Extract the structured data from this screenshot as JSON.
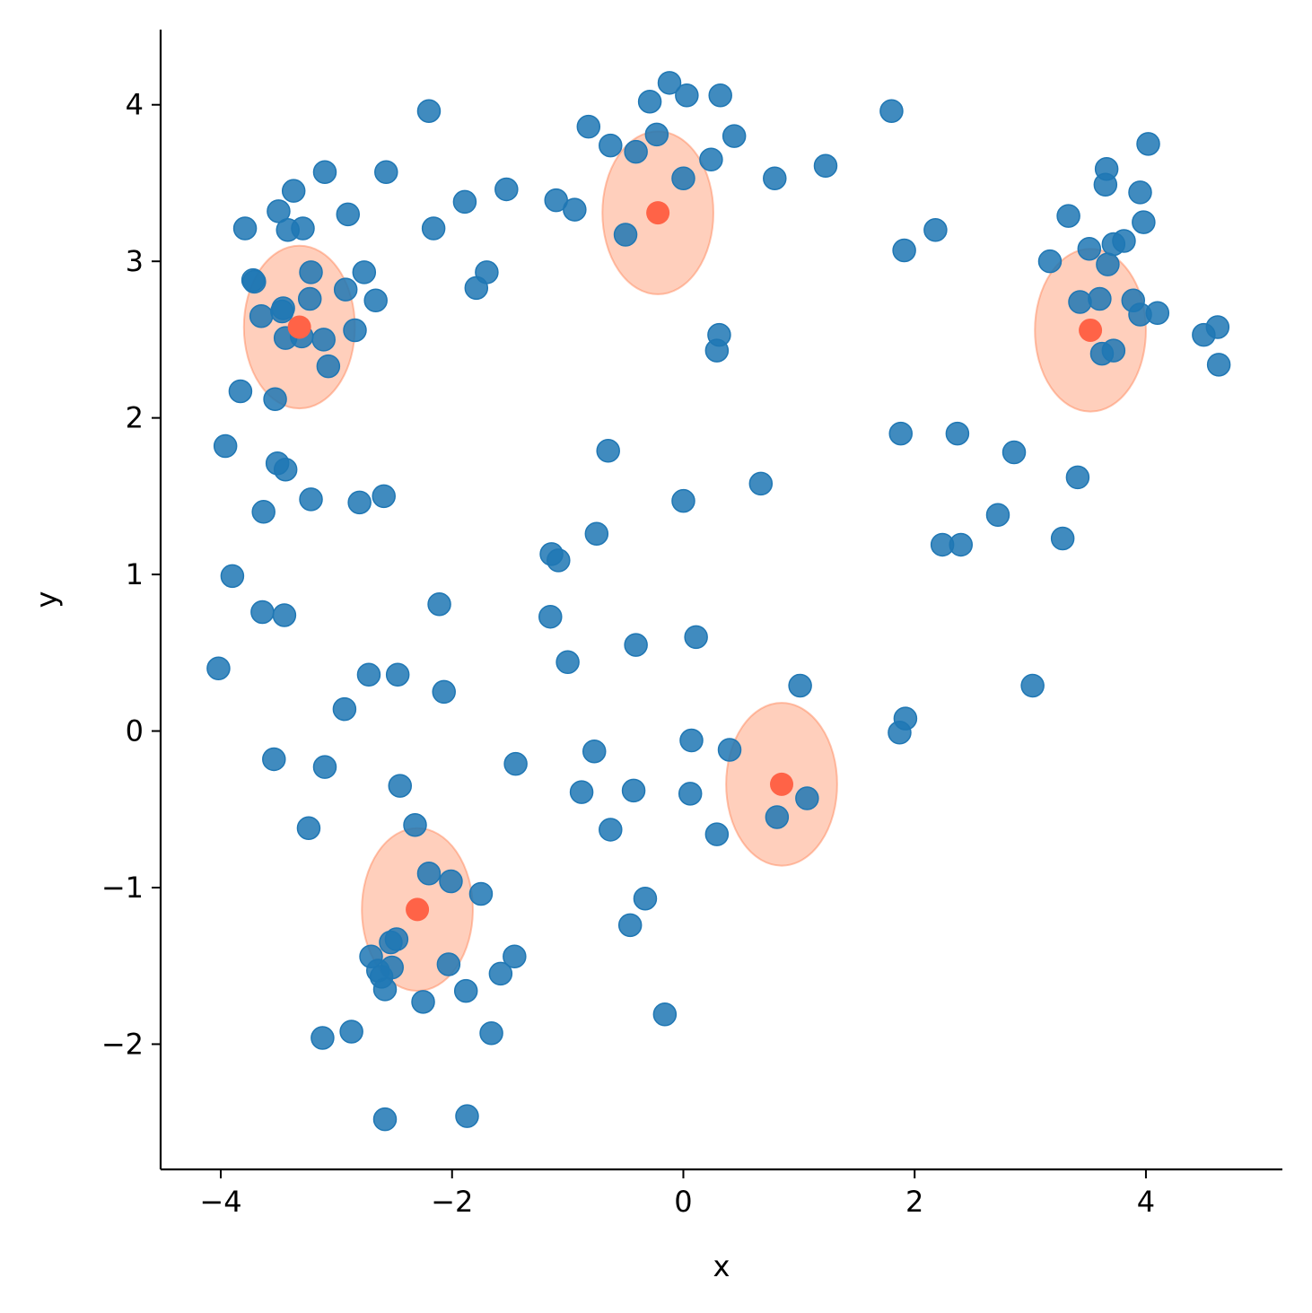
{
  "chart_data": {
    "type": "scatter",
    "title": "",
    "xlabel": "x",
    "ylabel": "y",
    "xlim": [
      -4.52,
      5.18
    ],
    "ylim": [
      -2.8,
      4.48
    ],
    "xticks": [
      -4,
      -2,
      0,
      2,
      4
    ],
    "yticks": [
      -2,
      -1,
      0,
      1,
      2,
      3,
      4
    ],
    "xtick_labels": [
      "−4",
      "−2",
      "0",
      "2",
      "4"
    ],
    "ytick_labels": [
      "−2",
      "−1",
      "0",
      "1",
      "2",
      "3",
      "4"
    ],
    "grid": false,
    "legend": "none",
    "colors": {
      "points": "#1f77b4",
      "centers": "#ff6347",
      "ellipses": "#ffa07a",
      "ellipse_edge": "#ff7f50"
    },
    "series": [
      {
        "kind": "points",
        "points": [
          [
            -3.79,
            3.21
          ],
          [
            -3.72,
            2.88
          ],
          [
            -3.71,
            2.87
          ],
          [
            -3.65,
            2.65
          ],
          [
            -3.5,
            3.32
          ],
          [
            -3.47,
            2.68
          ],
          [
            -3.46,
            2.7
          ],
          [
            -3.42,
            3.2
          ],
          [
            -3.37,
            3.45
          ],
          [
            -3.29,
            3.21
          ],
          [
            -3.22,
            2.93
          ],
          [
            -3.23,
            2.76
          ],
          [
            -3.3,
            2.52
          ],
          [
            -3.44,
            2.51
          ],
          [
            -3.11,
            2.5
          ],
          [
            -3.07,
            2.33
          ],
          [
            -3.1,
            3.57
          ],
          [
            -2.92,
            2.82
          ],
          [
            -2.9,
            3.3
          ],
          [
            -2.76,
            2.93
          ],
          [
            -2.84,
            2.56
          ],
          [
            -2.66,
            2.75
          ],
          [
            -2.57,
            3.57
          ],
          [
            -2.2,
            3.96
          ],
          [
            -2.16,
            3.21
          ],
          [
            -3.83,
            2.17
          ],
          [
            -3.53,
            2.12
          ],
          [
            -3.96,
            1.82
          ],
          [
            -3.51,
            1.71
          ],
          [
            -3.44,
            1.67
          ],
          [
            -3.22,
            1.48
          ],
          [
            -2.8,
            1.46
          ],
          [
            -2.59,
            1.5
          ],
          [
            -3.63,
            1.4
          ],
          [
            -3.9,
            0.99
          ],
          [
            -3.64,
            0.76
          ],
          [
            -3.45,
            0.74
          ],
          [
            -4.02,
            0.4
          ],
          [
            -1.89,
            3.38
          ],
          [
            -1.7,
            2.93
          ],
          [
            -1.79,
            2.83
          ],
          [
            -1.53,
            3.46
          ],
          [
            -1.1,
            3.39
          ],
          [
            -0.94,
            3.33
          ],
          [
            -0.82,
            3.86
          ],
          [
            -0.63,
            3.74
          ],
          [
            -0.41,
            3.7
          ],
          [
            -0.29,
            4.02
          ],
          [
            -0.23,
            3.81
          ],
          [
            -0.12,
            4.14
          ],
          [
            0.03,
            4.06
          ],
          [
            0.32,
            4.06
          ],
          [
            0.0,
            3.53
          ],
          [
            0.24,
            3.65
          ],
          [
            0.44,
            3.8
          ],
          [
            0.79,
            3.53
          ],
          [
            1.23,
            3.61
          ],
          [
            -0.5,
            3.17
          ],
          [
            1.8,
            3.96
          ],
          [
            0.31,
            2.53
          ],
          [
            0.29,
            2.43
          ],
          [
            2.18,
            3.2
          ],
          [
            1.91,
            3.07
          ],
          [
            3.17,
            3.0
          ],
          [
            3.33,
            3.29
          ],
          [
            3.51,
            3.08
          ],
          [
            3.43,
            2.74
          ],
          [
            3.6,
            2.76
          ],
          [
            3.65,
            3.49
          ],
          [
            3.66,
            3.59
          ],
          [
            3.67,
            2.98
          ],
          [
            3.72,
            3.11
          ],
          [
            3.81,
            3.13
          ],
          [
            3.89,
            2.75
          ],
          [
            3.95,
            3.44
          ],
          [
            3.98,
            3.25
          ],
          [
            4.02,
            3.75
          ],
          [
            3.95,
            2.66
          ],
          [
            4.1,
            2.67
          ],
          [
            3.62,
            2.41
          ],
          [
            3.72,
            2.43
          ],
          [
            4.5,
            2.53
          ],
          [
            4.62,
            2.58
          ],
          [
            4.63,
            2.34
          ],
          [
            1.88,
            1.9
          ],
          [
            2.37,
            1.9
          ],
          [
            2.86,
            1.78
          ],
          [
            3.41,
            1.62
          ],
          [
            2.72,
            1.38
          ],
          [
            2.24,
            1.19
          ],
          [
            2.4,
            1.19
          ],
          [
            3.28,
            1.23
          ],
          [
            3.02,
            0.29
          ],
          [
            1.92,
            0.08
          ],
          [
            1.87,
            -0.01
          ],
          [
            -0.65,
            1.79
          ],
          [
            0.0,
            1.47
          ],
          [
            0.67,
            1.58
          ],
          [
            -0.75,
            1.26
          ],
          [
            -1.14,
            1.13
          ],
          [
            -1.08,
            1.09
          ],
          [
            -1.15,
            0.73
          ],
          [
            -0.41,
            0.55
          ],
          [
            0.11,
            0.6
          ],
          [
            -1.0,
            0.44
          ],
          [
            1.01,
            0.29
          ],
          [
            -2.11,
            0.81
          ],
          [
            -2.07,
            0.25
          ],
          [
            -2.72,
            0.36
          ],
          [
            -2.47,
            0.36
          ],
          [
            -2.93,
            0.14
          ],
          [
            -3.54,
            -0.18
          ],
          [
            -3.1,
            -0.23
          ],
          [
            -2.45,
            -0.35
          ],
          [
            -1.45,
            -0.21
          ],
          [
            -0.77,
            -0.13
          ],
          [
            0.07,
            -0.06
          ],
          [
            0.4,
            -0.12
          ],
          [
            -0.88,
            -0.39
          ],
          [
            -0.43,
            -0.38
          ],
          [
            0.06,
            -0.4
          ],
          [
            1.07,
            -0.43
          ],
          [
            0.81,
            -0.55
          ],
          [
            -0.63,
            -0.63
          ],
          [
            0.29,
            -0.66
          ],
          [
            -3.24,
            -0.62
          ],
          [
            -2.32,
            -0.6
          ],
          [
            -2.2,
            -0.91
          ],
          [
            -2.01,
            -0.96
          ],
          [
            -1.75,
            -1.04
          ],
          [
            -0.33,
            -1.07
          ],
          [
            -0.46,
            -1.24
          ],
          [
            -2.48,
            -1.33
          ],
          [
            -2.53,
            -1.35
          ],
          [
            -2.7,
            -1.44
          ],
          [
            -2.64,
            -1.53
          ],
          [
            -2.61,
            -1.57
          ],
          [
            -2.52,
            -1.51
          ],
          [
            -2.58,
            -1.65
          ],
          [
            -2.03,
            -1.49
          ],
          [
            -1.58,
            -1.55
          ],
          [
            -1.46,
            -1.44
          ],
          [
            -2.25,
            -1.73
          ],
          [
            -1.88,
            -1.66
          ],
          [
            -1.66,
            -1.93
          ],
          [
            -2.87,
            -1.92
          ],
          [
            -3.12,
            -1.96
          ],
          [
            -0.16,
            -1.81
          ],
          [
            -2.58,
            -2.48
          ],
          [
            -1.87,
            -2.46
          ]
        ]
      },
      {
        "kind": "cluster-centers",
        "points": [
          [
            -3.32,
            2.58
          ],
          [
            -0.22,
            3.31
          ],
          [
            3.52,
            2.56
          ],
          [
            0.85,
            -0.34
          ],
          [
            -2.3,
            -1.14
          ]
        ]
      },
      {
        "kind": "cluster-ellipses",
        "ellipses": [
          {
            "cx": -3.32,
            "cy": 2.58,
            "rx": 0.48,
            "ry": 0.52
          },
          {
            "cx": -0.22,
            "cy": 3.31,
            "rx": 0.48,
            "ry": 0.52
          },
          {
            "cx": 3.52,
            "cy": 2.56,
            "rx": 0.48,
            "ry": 0.52
          },
          {
            "cx": 0.85,
            "cy": -0.34,
            "rx": 0.48,
            "ry": 0.52
          },
          {
            "cx": -2.3,
            "cy": -1.14,
            "rx": 0.48,
            "ry": 0.52
          }
        ]
      }
    ]
  }
}
